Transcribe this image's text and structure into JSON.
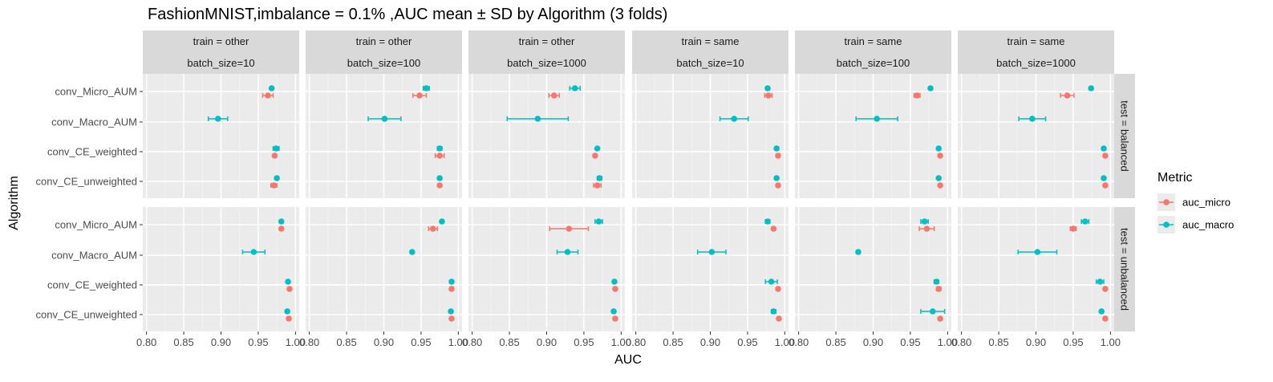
{
  "chart_data": {
    "type": "scatter",
    "title": "FashionMNIST,imbalance = 0.1% ,AUC mean ± SD by Algorithm (3 folds)",
    "xlabel": "AUC",
    "ylabel": "Algorithm",
    "xlim": [
      0.795,
      1.005
    ],
    "x_ticks": [
      0.8,
      0.85,
      0.9,
      0.95,
      1.0
    ],
    "x_tick_labels": [
      "0.80",
      "0.85",
      "0.90",
      "0.95",
      "1.00"
    ],
    "algorithms": [
      "conv_Micro_AUM",
      "conv_Macro_AUM",
      "conv_CE_weighted",
      "conv_CE_unweighted"
    ],
    "legend": {
      "title": "Metric",
      "position": "right",
      "entries": [
        {
          "name": "auc_micro",
          "color": "#F8766D"
        },
        {
          "name": "auc_macro",
          "color": "#00BFC4"
        }
      ]
    },
    "col_facets": [
      {
        "train": "train = other",
        "batch": "batch_size=10"
      },
      {
        "train": "train = other",
        "batch": "batch_size=100"
      },
      {
        "train": "train = other",
        "batch": "batch_size=1000"
      },
      {
        "train": "train = same",
        "batch": "batch_size=10"
      },
      {
        "train": "train = same",
        "batch": "batch_size=100"
      },
      {
        "train": "train = same",
        "batch": "batch_size=1000"
      }
    ],
    "row_facets": [
      "test = balanced",
      "test = unbalanced"
    ],
    "panels": [
      [
        {
          "auc_micro": [
            [
              0.963,
              0.007
            ],
            [
              null,
              null
            ],
            [
              0.972,
              0.002
            ],
            [
              0.971,
              0.004
            ]
          ],
          "auc_macro": [
            [
              0.968,
              0.002
            ],
            [
              0.896,
              0.013
            ],
            [
              0.974,
              0.004
            ],
            [
              0.975,
              0.002
            ]
          ]
        },
        {
          "auc_micro": [
            [
              0.948,
              0.009
            ],
            [
              null,
              null
            ],
            [
              0.975,
              0.006
            ],
            [
              0.975,
              0.002
            ]
          ],
          "auc_macro": [
            [
              0.957,
              0.004
            ],
            [
              0.901,
              0.022
            ],
            [
              0.975,
              0.003
            ],
            [
              0.975,
              0.002
            ]
          ]
        },
        {
          "auc_micro": [
            [
              0.91,
              0.007
            ],
            [
              null,
              null
            ],
            [
              0.965,
              0.002
            ],
            [
              0.968,
              0.005
            ]
          ],
          "auc_macro": [
            [
              0.938,
              0.007
            ],
            [
              0.888,
              0.041
            ],
            [
              0.968,
              0.002
            ],
            [
              0.971,
              0.003
            ]
          ]
        },
        {
          "auc_micro": [
            [
              0.978,
              0.005
            ],
            [
              null,
              null
            ],
            [
              0.991,
              0.002
            ],
            [
              0.991,
              0.002
            ]
          ],
          "auc_macro": [
            [
              0.977,
              0.002
            ],
            [
              0.932,
              0.019
            ],
            [
              0.989,
              0.002
            ],
            [
              0.989,
              0.002
            ]
          ]
        },
        {
          "auc_micro": [
            [
              0.959,
              0.004
            ],
            [
              null,
              null
            ],
            [
              0.99,
              0.002
            ],
            [
              0.99,
              0.002
            ]
          ],
          "auc_macro": [
            [
              0.977,
              0.002
            ],
            [
              0.905,
              0.028
            ],
            [
              0.988,
              0.002
            ],
            [
              0.988,
              0.002
            ]
          ]
        },
        {
          "auc_micro": [
            [
              0.942,
              0.009
            ],
            [
              null,
              null
            ],
            [
              0.993,
              0.002
            ],
            [
              0.993,
              0.002
            ]
          ],
          "auc_macro": [
            [
              0.974,
              0.002
            ],
            [
              0.895,
              0.018
            ],
            [
              0.991,
              0.002
            ],
            [
              0.991,
              0.002
            ]
          ]
        }
      ],
      [
        {
          "auc_micro": [
            [
              0.981,
              0.002
            ],
            [
              null,
              null
            ],
            [
              0.992,
              0.002
            ],
            [
              0.991,
              0.002
            ]
          ],
          "auc_macro": [
            [
              0.981,
              0.002
            ],
            [
              0.944,
              0.015
            ],
            [
              0.99,
              0.002
            ],
            [
              0.989,
              0.002
            ]
          ]
        },
        {
          "auc_micro": [
            [
              0.966,
              0.006
            ],
            [
              null,
              null
            ],
            [
              0.991,
              0.002
            ],
            [
              0.991,
              0.002
            ]
          ],
          "auc_macro": [
            [
              0.978,
              0.002
            ],
            [
              0.938,
              0.002
            ],
            [
              0.991,
              0.002
            ],
            [
              0.99,
              0.002
            ]
          ]
        },
        {
          "auc_micro": [
            [
              0.93,
              0.026
            ],
            [
              null,
              null
            ],
            [
              0.992,
              0.002
            ],
            [
              0.992,
              0.002
            ]
          ],
          "auc_macro": [
            [
              0.97,
              0.005
            ],
            [
              0.928,
              0.014
            ],
            [
              0.991,
              0.002
            ],
            [
              0.99,
              0.002
            ]
          ]
        },
        {
          "auc_micro": [
            [
              0.985,
              0.002
            ],
            [
              null,
              null
            ],
            [
              0.991,
              0.002
            ],
            [
              0.992,
              0.002
            ]
          ],
          "auc_macro": [
            [
              0.977,
              0.003
            ],
            [
              0.902,
              0.019
            ],
            [
              0.982,
              0.008
            ],
            [
              0.985,
              0.003
            ]
          ]
        },
        {
          "auc_micro": [
            [
              0.972,
              0.01
            ],
            [
              null,
              null
            ],
            [
              0.988,
              0.003
            ],
            [
              0.99,
              0.002
            ]
          ],
          "auc_macro": [
            [
              0.969,
              0.005
            ],
            [
              0.88,
              0.002
            ],
            [
              0.985,
              0.003
            ],
            [
              0.98,
              0.016
            ]
          ]
        },
        {
          "auc_micro": [
            [
              0.95,
              0.004
            ],
            [
              null,
              null
            ],
            [
              0.993,
              0.002
            ],
            [
              0.993,
              0.002
            ]
          ],
          "auc_macro": [
            [
              0.966,
              0.005
            ],
            [
              0.902,
              0.026
            ],
            [
              0.986,
              0.005
            ],
            [
              0.988,
              0.002
            ]
          ]
        }
      ]
    ]
  }
}
